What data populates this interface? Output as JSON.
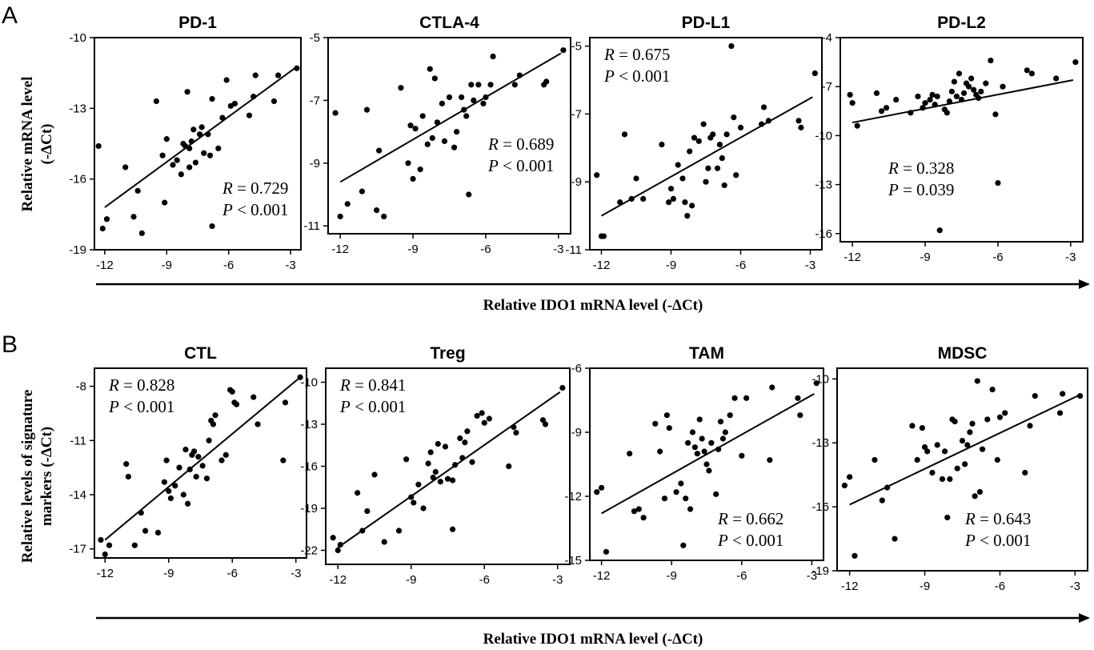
{
  "figure": {
    "panel_a_label": "A",
    "panel_b_label": "B",
    "row_a_ylabel_line1": "Relative mRNA level",
    "row_a_ylabel_line2": "(-ΔCt)",
    "row_b_ylabel_line1": "Relative levels of signature",
    "row_b_ylabel_line2": "markers (-ΔCt)",
    "row_a_xlabel": "Relative IDO1 mRNA level (-ΔCt)",
    "row_b_xlabel": "Relative IDO1 mRNA level (-ΔCt)",
    "r_prefix": "R",
    "p_prefix": "P"
  },
  "chart_data": [
    {
      "type": "scatter",
      "title": "PD-1",
      "xlim": [
        -12.5,
        -2.5
      ],
      "xticks": [
        -12,
        -9,
        -6,
        -3
      ],
      "ylim": [
        -19,
        -10
      ],
      "yticks": [
        -10,
        -13,
        -16,
        -19
      ],
      "r_text": " = 0.729",
      "p_text": " < 0.001",
      "stat_pos": "bottom-right",
      "fit": [
        [
          -12,
          -17.2
        ],
        [
          -2.8,
          -11.3
        ]
      ],
      "x": [
        -12.3,
        -12.1,
        -11.9,
        -11.0,
        -10.6,
        -10.4,
        -10.2,
        -9.5,
        -9.2,
        -9.1,
        -9.0,
        -8.7,
        -8.5,
        -8.3,
        -8.2,
        -8.0,
        -7.9,
        -7.9,
        -7.8,
        -7.7,
        -7.6,
        -7.4,
        -7.3,
        -7.2,
        -7.0,
        -6.9,
        -6.8,
        -6.8,
        -6.5,
        -6.3,
        -6.1,
        -5.9,
        -5.7,
        -5.0,
        -4.8,
        -4.7,
        -3.8,
        -3.6,
        -2.7,
        -8.1
      ],
      "y": [
        -14.6,
        -18.1,
        -17.7,
        -15.5,
        -17.6,
        -16.5,
        -18.3,
        -12.7,
        -15.0,
        -17.0,
        -14.3,
        -15.4,
        -15.2,
        -15.8,
        -14.5,
        -12.3,
        -14.7,
        -15.5,
        -14.4,
        -13.9,
        -15.3,
        -14.1,
        -13.8,
        -14.9,
        -14.1,
        -15.0,
        -18.0,
        -12.6,
        -14.7,
        -13.4,
        -11.8,
        -12.9,
        -12.8,
        -13.3,
        -12.5,
        -11.6,
        -12.7,
        -11.6,
        -11.3,
        -14.6
      ]
    },
    {
      "type": "scatter",
      "title": "CTLA-4",
      "xlim": [
        -12.5,
        -2.5
      ],
      "xticks": [
        -12,
        -9,
        -6,
        -3
      ],
      "ylim": [
        -11.25,
        -5
      ],
      "yticks": [
        -5,
        -7,
        -9,
        -11
      ],
      "r_text": " = 0.689",
      "p_text": " < 0.001",
      "stat_pos": "mid-right",
      "fit": [
        [
          -12,
          -9.6
        ],
        [
          -2.9,
          -5.5
        ]
      ],
      "x": [
        -12.2,
        -12.0,
        -11.7,
        -11.1,
        -10.9,
        -10.5,
        -10.4,
        -10.2,
        -9.5,
        -9.2,
        -9.1,
        -9.0,
        -8.9,
        -8.7,
        -8.6,
        -8.4,
        -8.3,
        -8.2,
        -8.1,
        -8.0,
        -7.8,
        -7.7,
        -7.5,
        -7.3,
        -7.2,
        -7.0,
        -6.9,
        -6.8,
        -6.7,
        -6.6,
        -6.5,
        -6.3,
        -6.1,
        -6.0,
        -5.8,
        -5.7,
        -4.8,
        -4.6,
        -3.6,
        -3.5,
        -2.8
      ],
      "y": [
        -7.4,
        -10.7,
        -10.3,
        -9.9,
        -7.3,
        -10.5,
        -8.6,
        -10.7,
        -6.6,
        -9.0,
        -7.8,
        -9.5,
        -7.9,
        -9.2,
        -7.5,
        -8.4,
        -6.0,
        -8.2,
        -6.3,
        -7.7,
        -7.1,
        -8.3,
        -6.9,
        -8.5,
        -8.0,
        -6.9,
        -7.3,
        -7.5,
        -10.0,
        -6.5,
        -7.0,
        -6.5,
        -7.1,
        -6.9,
        -6.5,
        -5.6,
        -6.5,
        -6.2,
        -6.5,
        -6.4,
        -5.4
      ]
    },
    {
      "type": "scatter",
      "title": "PD-L1",
      "xlim": [
        -12.5,
        -2.5
      ],
      "xticks": [
        -12,
        -9,
        -6,
        -3
      ],
      "ylim": [
        -11,
        -4.75
      ],
      "yticks": [
        -5,
        -7,
        -9,
        -11
      ],
      "r_text": " = 0.675",
      "p_text": " < 0.001",
      "stat_pos": "top-left",
      "fit": [
        [
          -12,
          -10.0
        ],
        [
          -2.9,
          -6.5
        ]
      ],
      "x": [
        -12.2,
        -12.0,
        -11.9,
        -11.2,
        -11.0,
        -10.7,
        -10.5,
        -10.2,
        -9.4,
        -9.1,
        -9.0,
        -8.9,
        -8.7,
        -8.5,
        -8.4,
        -8.3,
        -8.2,
        -8.1,
        -8.0,
        -7.8,
        -7.6,
        -7.5,
        -7.4,
        -7.3,
        -7.2,
        -7.0,
        -6.9,
        -6.8,
        -6.7,
        -6.6,
        -6.4,
        -6.3,
        -6.2,
        -6.0,
        -5.1,
        -5.0,
        -4.8,
        -3.5,
        -3.4,
        -2.8
      ],
      "y": [
        -8.8,
        -10.6,
        -10.6,
        -9.6,
        -7.6,
        -9.5,
        -8.9,
        -9.5,
        -7.9,
        -9.6,
        -9.2,
        -9.5,
        -8.5,
        -8.9,
        -9.6,
        -10.0,
        -8.1,
        -9.7,
        -7.7,
        -7.8,
        -7.3,
        -9.0,
        -8.6,
        -7.7,
        -7.6,
        -8.6,
        -7.9,
        -8.3,
        -9.1,
        -7.6,
        -5.0,
        -7.1,
        -8.8,
        -7.4,
        -7.3,
        -6.8,
        -7.2,
        -7.2,
        -7.4,
        -5.8
      ]
    },
    {
      "type": "scatter",
      "title": "PD-L2",
      "xlim": [
        -12.5,
        -2.5
      ],
      "xticks": [
        -12,
        -9,
        -6,
        -3
      ],
      "ylim": [
        -16.5,
        -4
      ],
      "yticks": [
        -4,
        -7,
        -10,
        -13,
        -16
      ],
      "r_text": " = 0.328",
      "p_text": " = 0.039",
      "stat_pos": "mid-left",
      "fit": [
        [
          -12,
          -9.2
        ],
        [
          -2.9,
          -6.6
        ]
      ],
      "x": [
        -12.1,
        -12.0,
        -11.8,
        -11.0,
        -10.8,
        -10.6,
        -10.2,
        -9.6,
        -9.3,
        -9.1,
        -9.0,
        -8.8,
        -8.7,
        -8.6,
        -8.5,
        -8.4,
        -8.2,
        -8.1,
        -8.0,
        -7.9,
        -7.8,
        -7.7,
        -7.6,
        -7.5,
        -7.4,
        -7.3,
        -7.2,
        -7.1,
        -7.0,
        -6.9,
        -6.8,
        -6.7,
        -6.5,
        -6.3,
        -6.1,
        -6.0,
        -5.8,
        -4.8,
        -4.6,
        -3.6,
        -2.8
      ],
      "y": [
        -7.5,
        -8.0,
        -9.4,
        -7.4,
        -8.5,
        -8.3,
        -7.8,
        -8.6,
        -7.6,
        -8.3,
        -8.0,
        -7.8,
        -7.5,
        -8.1,
        -7.6,
        -15.8,
        -8.4,
        -8.6,
        -7.9,
        -7.3,
        -6.7,
        -7.6,
        -6.2,
        -7.8,
        -7.4,
        -6.8,
        -7.0,
        -6.5,
        -7.2,
        -7.5,
        -7.7,
        -7.3,
        -6.8,
        -5.4,
        -8.7,
        -12.9,
        -7.0,
        -6.0,
        -6.2,
        -6.5,
        -5.5
      ]
    },
    {
      "type": "scatter",
      "title": "CTL",
      "xlim": [
        -12.5,
        -2.5
      ],
      "xticks": [
        -12,
        -9,
        -6,
        -3
      ],
      "ylim": [
        -17.5,
        -7
      ],
      "yticks": [
        -8,
        -11,
        -14,
        -17
      ],
      "r_text": " = 0.828",
      "p_text": " < 0.001",
      "stat_pos": "top-left",
      "fit": [
        [
          -12,
          -16.5
        ],
        [
          -2.9,
          -7.6
        ]
      ],
      "x": [
        -12.2,
        -12.0,
        -11.8,
        -11.0,
        -10.9,
        -10.6,
        -10.3,
        -10.1,
        -9.5,
        -9.2,
        -9.1,
        -9.0,
        -8.9,
        -8.7,
        -8.5,
        -8.3,
        -8.2,
        -8.1,
        -8.0,
        -7.9,
        -7.8,
        -7.7,
        -7.6,
        -7.4,
        -7.2,
        -7.1,
        -7.0,
        -6.9,
        -6.8,
        -6.5,
        -6.3,
        -6.1,
        -6.0,
        -5.9,
        -5.8,
        -5.0,
        -4.8,
        -3.6,
        -3.5,
        -2.8
      ],
      "y": [
        -16.5,
        -17.3,
        -16.8,
        -12.3,
        -13.0,
        -16.8,
        -15.0,
        -16.0,
        -16.1,
        -13.3,
        -12.1,
        -13.8,
        -14.2,
        -13.5,
        -12.5,
        -14.0,
        -11.5,
        -14.5,
        -12.6,
        -11.8,
        -11.6,
        -13.0,
        -11.9,
        -12.4,
        -13.1,
        -11.0,
        -9.9,
        -10.1,
        -9.6,
        -12.1,
        -11.8,
        -8.2,
        -8.3,
        -8.9,
        -9.0,
        -8.6,
        -10.1,
        -12.1,
        -8.9,
        -7.5
      ]
    },
    {
      "type": "scatter",
      "title": "Treg",
      "xlim": [
        -12.5,
        -2.5
      ],
      "xticks": [
        -12,
        -9,
        -6,
        -3
      ],
      "ylim": [
        -23,
        -9
      ],
      "yticks": [
        -10,
        -13,
        -16,
        -19,
        -22
      ],
      "r_text": " = 0.841",
      "p_text": " < 0.001",
      "stat_pos": "top-left",
      "fit": [
        [
          -12,
          -21.8
        ],
        [
          -2.9,
          -10.7
        ]
      ],
      "x": [
        -12.2,
        -12.0,
        -11.9,
        -11.2,
        -11.0,
        -10.8,
        -10.5,
        -10.1,
        -9.5,
        -9.2,
        -9.0,
        -8.9,
        -8.7,
        -8.5,
        -8.3,
        -8.2,
        -8.1,
        -8.0,
        -7.9,
        -7.8,
        -7.6,
        -7.5,
        -7.3,
        -7.2,
        -7.0,
        -6.9,
        -6.8,
        -6.7,
        -6.5,
        -6.3,
        -6.1,
        -6.0,
        -5.8,
        -5.0,
        -4.8,
        -4.7,
        -3.6,
        -3.5,
        -2.8,
        -7.3
      ],
      "y": [
        -21.1,
        -22.0,
        -21.6,
        -17.9,
        -20.6,
        -19.2,
        -16.6,
        -21.4,
        -20.6,
        -15.5,
        -18.2,
        -18.6,
        -17.3,
        -19.0,
        -15.8,
        -15.0,
        -16.8,
        -16.4,
        -14.4,
        -17.1,
        -14.6,
        -16.9,
        -17.0,
        -15.9,
        -14.0,
        -15.4,
        -14.3,
        -13.5,
        -15.7,
        -12.4,
        -12.2,
        -12.9,
        -12.6,
        -16.0,
        -13.2,
        -13.6,
        -12.7,
        -13.0,
        -10.4,
        -20.5
      ]
    },
    {
      "type": "scatter",
      "title": "TAM",
      "xlim": [
        -12.5,
        -2.5
      ],
      "xticks": [
        -12,
        -9,
        -6,
        -3
      ],
      "ylim": [
        -15,
        -6
      ],
      "yticks": [
        -6,
        -9,
        -12,
        -15
      ],
      "r_text": " = 0.662",
      "p_text": " < 0.001",
      "stat_pos": "bottom-right",
      "fit": [
        [
          -12,
          -12.8
        ],
        [
          -2.9,
          -7.2
        ]
      ],
      "x": [
        -12.2,
        -12.0,
        -11.8,
        -10.8,
        -10.6,
        -10.4,
        -10.2,
        -9.7,
        -9.5,
        -9.3,
        -9.2,
        -9.1,
        -8.8,
        -8.6,
        -8.5,
        -8.4,
        -8.3,
        -8.2,
        -8.1,
        -8.0,
        -7.9,
        -7.8,
        -7.7,
        -7.6,
        -7.5,
        -7.4,
        -7.3,
        -7.1,
        -7.0,
        -6.9,
        -6.8,
        -6.7,
        -6.5,
        -6.3,
        -6.0,
        -5.8,
        -4.8,
        -4.7,
        -3.6,
        -3.5,
        -2.8
      ],
      "y": [
        -11.8,
        -11.6,
        -14.6,
        -10.0,
        -12.7,
        -12.6,
        -13.0,
        -8.6,
        -9.9,
        -12.1,
        -8.2,
        -8.8,
        -11.8,
        -11.4,
        -14.3,
        -12.1,
        -9.5,
        -12.6,
        -9.0,
        -9.7,
        -10.0,
        -8.4,
        -9.3,
        -9.9,
        -10.5,
        -10.8,
        -9.5,
        -11.9,
        -9.8,
        -8.5,
        -9.3,
        -9.0,
        -8.2,
        -7.4,
        -10.1,
        -7.4,
        -10.3,
        -6.9,
        -7.4,
        -8.2,
        -6.7
      ]
    },
    {
      "type": "scatter",
      "title": "MDSC",
      "xlim": [
        -12.5,
        -2.5
      ],
      "xticks": [
        -12,
        -9,
        -6,
        -3
      ],
      "ylim": [
        -19,
        -9.5
      ],
      "yticks": [
        -10,
        -13,
        -16,
        -19
      ],
      "r_text": " = 0.643",
      "p_text": " < 0.001",
      "stat_pos": "bottom-right",
      "fit": [
        [
          -12,
          -15.9
        ],
        [
          -2.9,
          -10.8
        ]
      ],
      "x": [
        -12.2,
        -12.0,
        -11.8,
        -11.0,
        -10.7,
        -10.5,
        -10.2,
        -9.5,
        -9.3,
        -9.1,
        -9.0,
        -8.9,
        -8.7,
        -8.5,
        -8.3,
        -8.2,
        -8.1,
        -8.0,
        -7.9,
        -7.8,
        -7.7,
        -7.5,
        -7.4,
        -7.3,
        -7.2,
        -7.1,
        -7.0,
        -6.9,
        -6.8,
        -6.7,
        -6.5,
        -6.3,
        -6.1,
        -6.0,
        -5.8,
        -5.0,
        -4.8,
        -4.6,
        -3.6,
        -3.5,
        -2.8
      ],
      "y": [
        -15.0,
        -14.6,
        -18.3,
        -13.8,
        -15.7,
        -15.1,
        -17.5,
        -12.2,
        -13.8,
        -12.3,
        -13.2,
        -13.4,
        -14.4,
        -13.1,
        -14.7,
        -13.4,
        -16.5,
        -14.7,
        -11.9,
        -12.0,
        -14.2,
        -12.9,
        -14.0,
        -13.1,
        -12.5,
        -12.1,
        -15.5,
        -10.1,
        -15.3,
        -13.3,
        -11.9,
        -10.5,
        -13.8,
        -11.8,
        -11.6,
        -14.4,
        -12.2,
        -10.8,
        -11.6,
        -10.7,
        -10.8
      ]
    }
  ]
}
